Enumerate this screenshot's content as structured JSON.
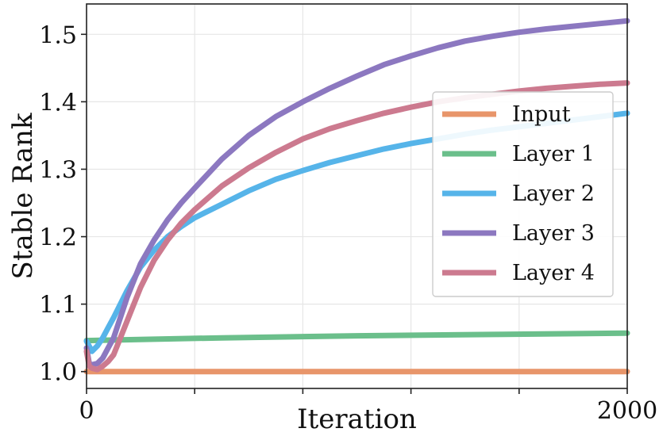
{
  "chart_data": {
    "type": "line",
    "title": "",
    "xlabel": "Iteration",
    "ylabel": "Stable Rank",
    "xlim": [
      0,
      2000
    ],
    "ylim": [
      0.975,
      1.545
    ],
    "x_ticks": [
      0,
      400,
      800,
      1200,
      1600,
      2000
    ],
    "x_tick_labels": [
      "0",
      "",
      "",
      "",
      "",
      "2000"
    ],
    "y_ticks": [
      1.0,
      1.1,
      1.2,
      1.3,
      1.4,
      1.5
    ],
    "y_tick_labels": [
      "1.0",
      "1.1",
      "1.2",
      "1.3",
      "1.4",
      "1.5"
    ],
    "grid": true,
    "legend_position": "center-right",
    "series": [
      {
        "name": "Input",
        "color": "#e8956a",
        "x": [
          0,
          2000
        ],
        "y": [
          1.0,
          1.0
        ]
      },
      {
        "name": "Layer 1",
        "color": "#6bbf8b",
        "x": [
          0,
          500,
          1000,
          1500,
          2000
        ],
        "y": [
          1.046,
          1.05,
          1.053,
          1.055,
          1.057
        ]
      },
      {
        "name": "Layer 2",
        "color": "#56b4e9",
        "x": [
          0,
          20,
          40,
          60,
          80,
          100,
          150,
          200,
          250,
          300,
          350,
          400,
          500,
          600,
          700,
          800,
          900,
          1000,
          1100,
          1200,
          1300,
          1400,
          1500,
          1600,
          1700,
          1800,
          1900,
          2000
        ],
        "y": [
          1.045,
          1.03,
          1.038,
          1.05,
          1.065,
          1.08,
          1.12,
          1.155,
          1.18,
          1.2,
          1.215,
          1.228,
          1.248,
          1.268,
          1.285,
          1.298,
          1.31,
          1.32,
          1.33,
          1.338,
          1.345,
          1.352,
          1.358,
          1.363,
          1.368,
          1.373,
          1.378,
          1.383
        ]
      },
      {
        "name": "Layer 3",
        "color": "#8c78c0",
        "x": [
          0,
          10,
          20,
          40,
          60,
          80,
          100,
          150,
          200,
          250,
          300,
          350,
          400,
          500,
          600,
          700,
          800,
          900,
          1000,
          1100,
          1200,
          1300,
          1400,
          1500,
          1600,
          1700,
          1800,
          1900,
          2000
        ],
        "y": [
          1.035,
          1.012,
          1.01,
          1.012,
          1.02,
          1.035,
          1.05,
          1.11,
          1.16,
          1.195,
          1.225,
          1.25,
          1.272,
          1.315,
          1.35,
          1.378,
          1.4,
          1.42,
          1.438,
          1.455,
          1.468,
          1.48,
          1.49,
          1.497,
          1.503,
          1.508,
          1.512,
          1.516,
          1.52
        ]
      },
      {
        "name": "Layer 4",
        "color": "#cc7a8f",
        "x": [
          0,
          10,
          20,
          40,
          60,
          80,
          100,
          150,
          200,
          250,
          300,
          350,
          400,
          500,
          600,
          700,
          800,
          900,
          1000,
          1100,
          1200,
          1300,
          1400,
          1500,
          1600,
          1700,
          1800,
          1900,
          2000
        ],
        "y": [
          1.03,
          1.008,
          1.005,
          1.003,
          1.008,
          1.015,
          1.025,
          1.075,
          1.125,
          1.165,
          1.195,
          1.22,
          1.24,
          1.275,
          1.302,
          1.325,
          1.345,
          1.36,
          1.372,
          1.383,
          1.392,
          1.4,
          1.406,
          1.411,
          1.416,
          1.42,
          1.423,
          1.426,
          1.428
        ]
      }
    ]
  }
}
